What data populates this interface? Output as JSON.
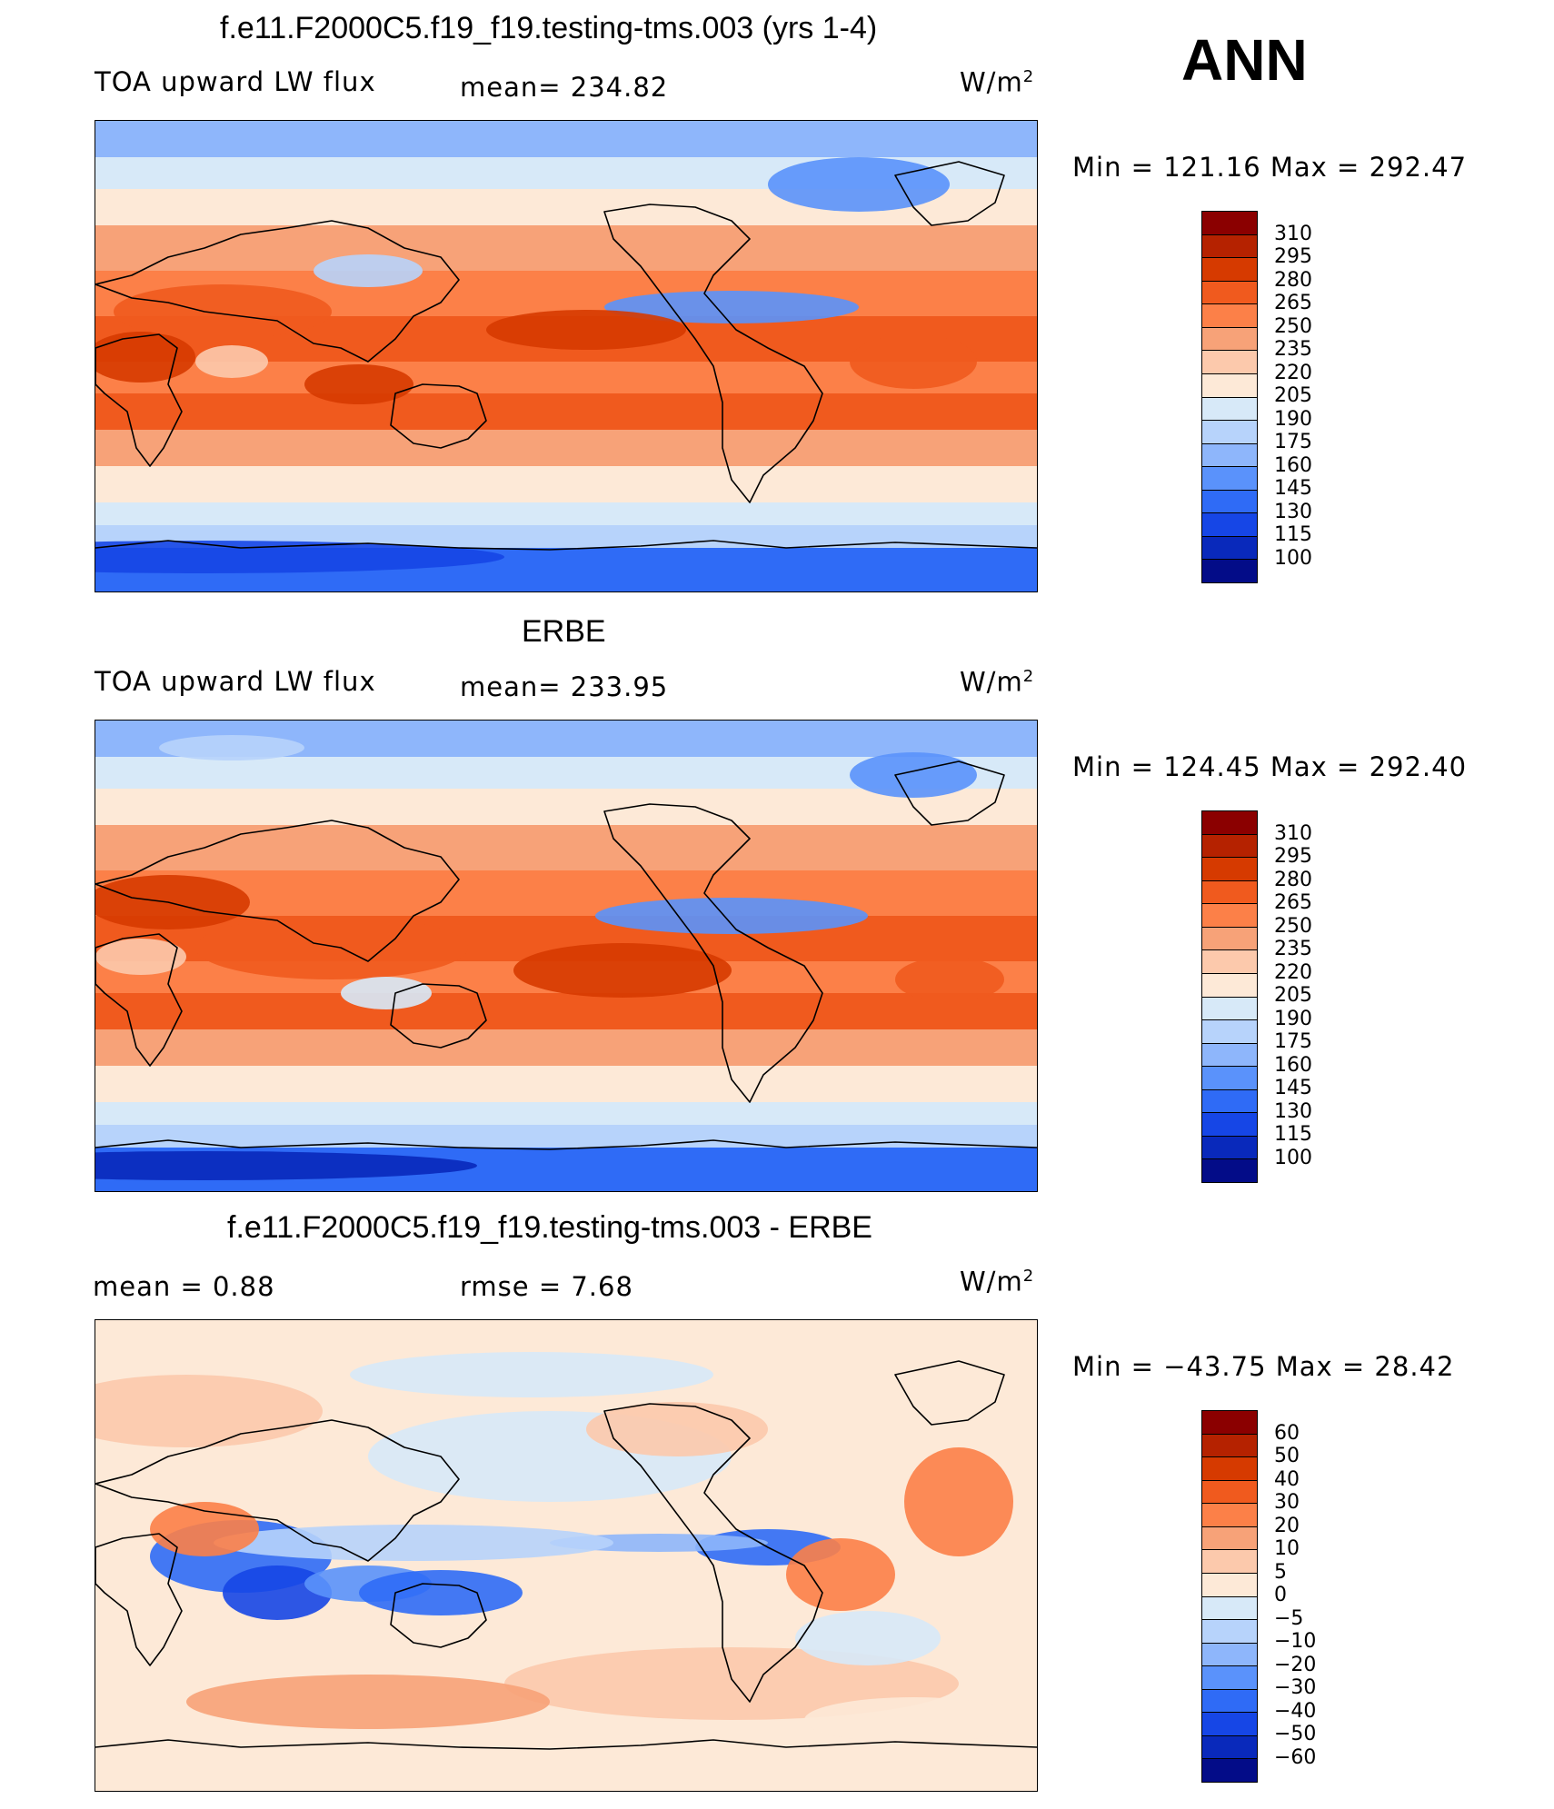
{
  "header": {
    "ann_label": "ANN"
  },
  "palettes": {
    "abs": [
      "#8b0000",
      "#b52200",
      "#d63a00",
      "#f05a1e",
      "#fc8048",
      "#f7a278",
      "#fcc9ac",
      "#fde9d7",
      "#d7e9f8",
      "#b7d3fb",
      "#8eb6fb",
      "#5a92fb",
      "#2f6bf6",
      "#1646e6",
      "#0929bb",
      "#030c88"
    ],
    "diff": [
      "#8b0000",
      "#b52200",
      "#d63a00",
      "#f05a1e",
      "#fc8048",
      "#f7a278",
      "#fcc9ac",
      "#fde9d7",
      "#d7e9f8",
      "#b7d3fb",
      "#8eb6fb",
      "#5a92fb",
      "#2f6bf6",
      "#1646e6",
      "#0929bb",
      "#030c88"
    ]
  },
  "panels": [
    {
      "title": "f.e11.F2000C5.f19_f19.testing-tms.003 (yrs 1-4)",
      "left_label": "TOA upward LW flux",
      "center_label": "mean=  234.82",
      "units_base": "W/m",
      "units_sup": "2",
      "minmax": "Min  =  121.16  Max  =  292.47",
      "ticks": [
        "310",
        "295",
        "280",
        "265",
        "250",
        "235",
        "220",
        "205",
        "190",
        "175",
        "160",
        "145",
        "130",
        "115",
        "100"
      ],
      "variant": 0
    },
    {
      "title": "ERBE",
      "left_label": "TOA upward LW flux",
      "center_label": "mean=  233.95",
      "units_base": "W/m",
      "units_sup": "2",
      "minmax": "Min  =  124.45  Max  =  292.40",
      "ticks": [
        "310",
        "295",
        "280",
        "265",
        "250",
        "235",
        "220",
        "205",
        "190",
        "175",
        "160",
        "145",
        "130",
        "115",
        "100"
      ],
      "variant": 1
    },
    {
      "title": "f.e11.F2000C5.f19_f19.testing-tms.003 - ERBE",
      "left_label": "mean  =     0.88",
      "center_label": "rmse  =     7.68",
      "units_base": "W/m",
      "units_sup": "2",
      "minmax": "Min  =  −43.75  Max  =    28.42",
      "ticks": [
        "60",
        "50",
        "40",
        "30",
        "20",
        "10",
        "5",
        "0",
        "−5",
        "−10",
        "−20",
        "−30",
        "−40",
        "−50",
        "−60"
      ],
      "variant": 2
    }
  ]
}
